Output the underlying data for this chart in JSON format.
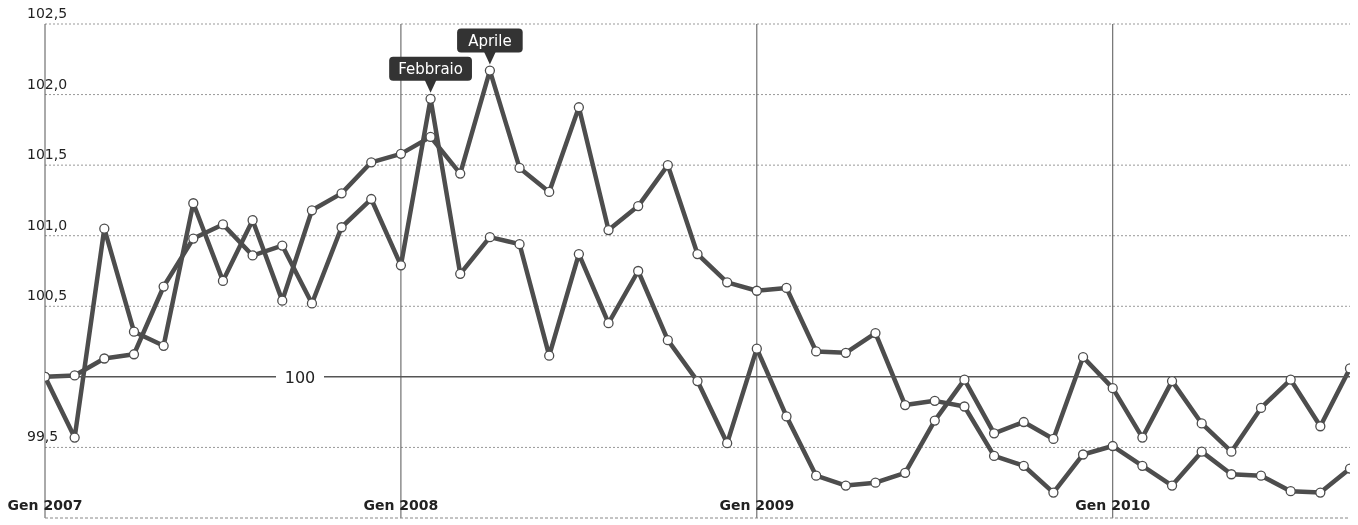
{
  "chart_data": {
    "type": "line",
    "categories": [
      "Gen 2007",
      null,
      null,
      null,
      null,
      null,
      null,
      null,
      null,
      null,
      null,
      null,
      "Gen 2008",
      null,
      null,
      null,
      null,
      null,
      null,
      null,
      null,
      null,
      null,
      null,
      "Gen 2009",
      null,
      null,
      null,
      null,
      null,
      null,
      null,
      null,
      null,
      null,
      null,
      "Gen 2010",
      null,
      null,
      null,
      null,
      null,
      null,
      null,
      null
    ],
    "series": [
      {
        "color": "#4d4d4d",
        "values": [
          100,
          99.57,
          101.05,
          100.32,
          100.22,
          101.23,
          100.68,
          101.11,
          100.54,
          101.18,
          101.3,
          101.52,
          101.58,
          101.7,
          101.44,
          102.17,
          101.48,
          101.31,
          101.91,
          101.04,
          101.21,
          101.5,
          100.87,
          100.67,
          100.61,
          100.63,
          100.18,
          100.17,
          100.31,
          99.8,
          99.83,
          99.79,
          99.44,
          99.37,
          99.18,
          99.45,
          99.51,
          99.37,
          99.23,
          99.47,
          99.31,
          99.3,
          99.19,
          99.18,
          99.35
        ]
      },
      {
        "color": "#4d4d4d",
        "values": [
          100,
          100.01,
          100.13,
          100.16,
          100.64,
          100.98,
          101.08,
          100.86,
          100.93,
          100.52,
          101.06,
          101.26,
          100.79,
          101.97,
          100.73,
          100.99,
          100.94,
          100.15,
          100.87,
          100.38,
          100.75,
          100.26,
          99.97,
          99.53,
          100.2,
          99.72,
          99.3,
          99.23,
          99.25,
          99.32,
          99.69,
          99.98,
          99.6,
          99.68,
          99.56,
          100.14,
          99.92,
          99.57,
          99.97,
          99.67,
          99.47,
          99.78,
          99.98,
          99.65,
          100.06
        ]
      }
    ],
    "ylim": [
      99,
      102.5
    ],
    "yticks": [
      {
        "value": 99.5,
        "label": "99,5"
      },
      {
        "value": 100.5,
        "label": "100,5"
      },
      {
        "value": 101,
        "label": "101,0"
      },
      {
        "value": 101.5,
        "label": "101,5"
      },
      {
        "value": 102,
        "label": "102,0"
      },
      {
        "value": 102.5,
        "label": "102,5"
      }
    ],
    "ref_lines": [
      {
        "axis": "y",
        "value": 100,
        "label": "100",
        "color": "#555555"
      }
    ],
    "annotations": [
      {
        "text": "Febbraio",
        "y": 101.97
      },
      {
        "text": "Aprile",
        "y": 102.17
      }
    ],
    "grid": true,
    "marker": "circle",
    "line_style": "solid"
  }
}
